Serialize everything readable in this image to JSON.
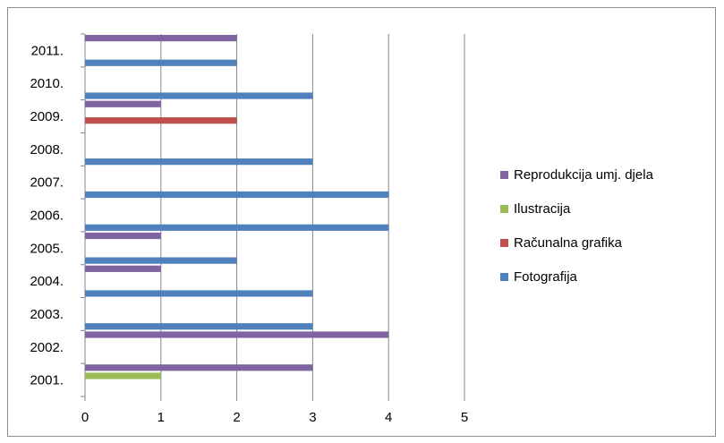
{
  "chart_data": {
    "type": "bar",
    "orientation": "horizontal",
    "categories": [
      "2001.",
      "2002.",
      "2003.",
      "2004.",
      "2005.",
      "2006.",
      "2007.",
      "2008.",
      "2009.",
      "2010.",
      "2011."
    ],
    "series": [
      {
        "name": "Fotografija",
        "color": "#4f81bd",
        "values": [
          0,
          0,
          3,
          3,
          2,
          4,
          4,
          3,
          0,
          3,
          2
        ]
      },
      {
        "name": "Računalna grafika",
        "color": "#c0504d",
        "values": [
          0,
          0,
          0,
          0,
          0,
          0,
          0,
          0,
          2,
          0,
          0
        ]
      },
      {
        "name": "Ilustracija",
        "color": "#9bbb59",
        "values": [
          1,
          0,
          0,
          0,
          0,
          0,
          0,
          0,
          0,
          0,
          0
        ]
      },
      {
        "name": "Reprodukcija umj. djela",
        "color": "#8064a2",
        "values": [
          3,
          4,
          0,
          1,
          1,
          0,
          0,
          0,
          1,
          0,
          2
        ]
      }
    ],
    "xlim": [
      0,
      5
    ],
    "xticks": [
      "0",
      "1",
      "2",
      "3",
      "4",
      "5"
    ],
    "grid": true,
    "legend_position": "right",
    "legend_order": [
      "Reprodukcija umj. djela",
      "Ilustracija",
      "Računalna grafika",
      "Fotografija"
    ]
  }
}
